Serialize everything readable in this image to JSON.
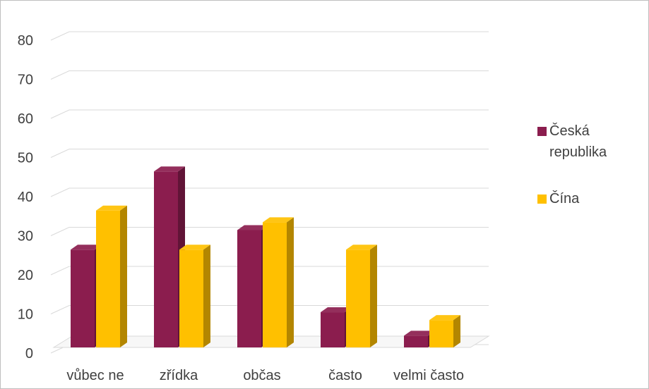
{
  "chart_data": {
    "type": "bar",
    "style": "3d-clustered-column",
    "categories": [
      "vůbec ne",
      "zřídka",
      "občas",
      "často",
      "velmi často"
    ],
    "series": [
      {
        "name": "Česká republika",
        "color": "#8b1d4e",
        "values": [
          25,
          45,
          30,
          9,
          3
        ]
      },
      {
        "name": "Čína",
        "color": "#ffc000",
        "values": [
          35,
          25,
          32,
          25,
          7
        ]
      }
    ],
    "ylim": [
      0,
      80
    ],
    "yticks": [
      0,
      10,
      20,
      30,
      40,
      50,
      60,
      70,
      80
    ],
    "grid": true,
    "legend_position": "right",
    "title": "",
    "xlabel": "",
    "ylabel": ""
  }
}
